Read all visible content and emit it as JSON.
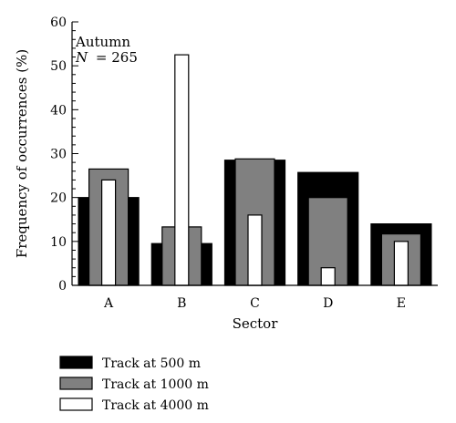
{
  "chart_data": {
    "type": "bar",
    "subtype": "nested-overlapping",
    "title": "",
    "annotation": {
      "season": "Autumn",
      "n_label": "N",
      "n_value": "= 265"
    },
    "xlabel": "Sector",
    "ylabel": "Frequency of occurrences (%)",
    "ylim": [
      0,
      60
    ],
    "yticks": [
      0,
      10,
      20,
      30,
      40,
      50,
      60
    ],
    "yticks_minor_step": 2,
    "categories": [
      "A",
      "B",
      "C",
      "D",
      "E"
    ],
    "series": [
      {
        "name": "Track at 500 m",
        "color": "#000000",
        "values": [
          20,
          9.5,
          28.5,
          25.7,
          14
        ]
      },
      {
        "name": "Track at 1000 m",
        "color": "#808080",
        "values": [
          26.5,
          13.3,
          28.8,
          20,
          11.7
        ]
      },
      {
        "name": "Track at 4000 m",
        "color": "#ffffff",
        "values": [
          24,
          52.5,
          16,
          4,
          10
        ]
      }
    ],
    "grid": false,
    "legend_position": "bottom-left"
  }
}
